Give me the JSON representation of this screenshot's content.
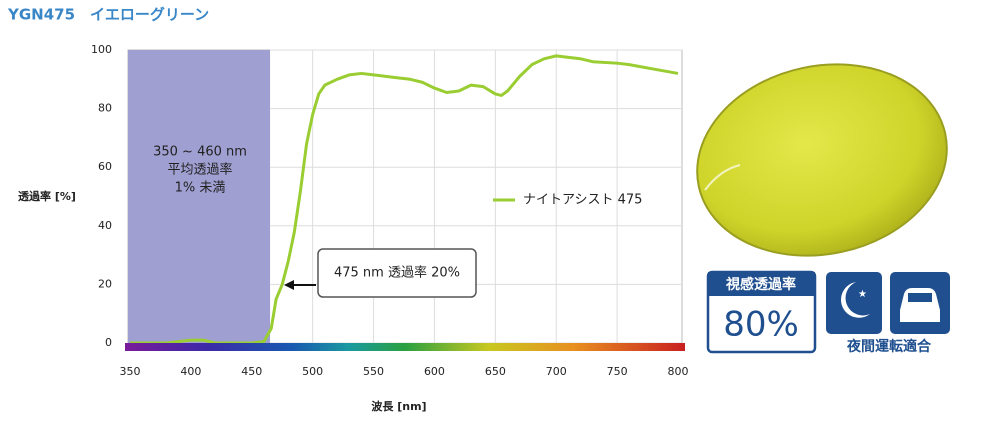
{
  "header": {
    "title": "YGN475　イエローグリーン"
  },
  "chart_data": {
    "type": "line",
    "x_label": "波長 [nm]",
    "y_label": "透過率 [%]",
    "xlim": [
      350,
      800
    ],
    "ylim": [
      0,
      100
    ],
    "xticks": [
      350,
      400,
      450,
      500,
      550,
      600,
      650,
      700,
      750,
      800
    ],
    "yticks": [
      0,
      20,
      40,
      60,
      80,
      100
    ],
    "grid": true,
    "shaded_band": {
      "range": [
        350,
        465
      ],
      "color": "#9f9fd2",
      "lines": [
        "350 ~ 460 nm",
        "平均透過率",
        "1% 未満"
      ]
    },
    "annotation": "475 nm 透過率 20%",
    "legend_position": "right",
    "series": [
      {
        "name": "ナイトアシスト 475",
        "color": "#9acd32",
        "x": [
          350,
          380,
          400,
          410,
          420,
          450,
          460,
          466,
          470,
          475,
          480,
          485,
          490,
          495,
          500,
          505,
          510,
          520,
          530,
          540,
          550,
          560,
          570,
          580,
          590,
          600,
          610,
          620,
          630,
          640,
          650,
          655,
          660,
          670,
          680,
          690,
          700,
          710,
          720,
          730,
          750,
          760,
          780,
          800
        ],
        "values": [
          0,
          0,
          1,
          1,
          0,
          0,
          0.5,
          5,
          15,
          20,
          28,
          38,
          52,
          68,
          78,
          85,
          88,
          90,
          91.5,
          92,
          91.5,
          91,
          90.5,
          90,
          89,
          87,
          85.5,
          86,
          88,
          87.5,
          85,
          84.5,
          86,
          91,
          95,
          97,
          98,
          97.5,
          97,
          96,
          95.5,
          95,
          93.5,
          92
        ]
      }
    ]
  },
  "badges": {
    "visual_title": "視感透過率",
    "visual_value": "80%",
    "night_driving": "夜間運転適合"
  }
}
